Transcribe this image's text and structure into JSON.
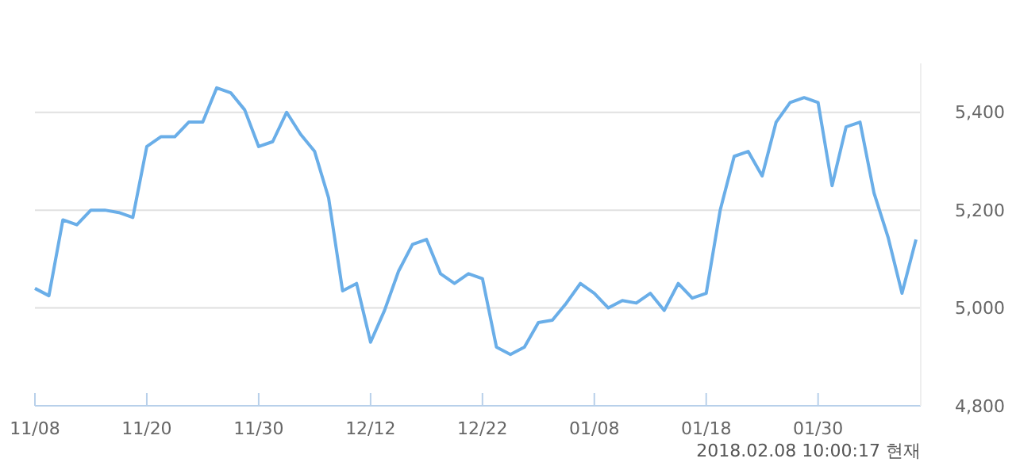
{
  "chart_data": {
    "type": "line",
    "categories": [
      "11/08",
      null,
      null,
      null,
      null,
      null,
      null,
      null,
      "11/20",
      null,
      null,
      null,
      null,
      null,
      null,
      null,
      "11/30",
      null,
      null,
      null,
      null,
      null,
      null,
      null,
      "12/12",
      null,
      null,
      null,
      null,
      null,
      null,
      null,
      "12/22",
      null,
      null,
      null,
      null,
      null,
      null,
      null,
      "01/08",
      null,
      null,
      null,
      null,
      null,
      null,
      null,
      "01/18",
      null,
      null,
      null,
      null,
      null,
      null,
      null,
      "01/30",
      null,
      null,
      null,
      null,
      null,
      null,
      null
    ],
    "series": [
      {
        "color": "#6aaee8",
        "values": [
          5040,
          5025,
          5180,
          5170,
          5200,
          5200,
          5195,
          5185,
          5330,
          5350,
          5350,
          5380,
          5380,
          5450,
          5440,
          5405,
          5330,
          5340,
          5400,
          5355,
          5320,
          5225,
          5035,
          5050,
          4930,
          4995,
          5075,
          5130,
          5140,
          5070,
          5050,
          5070,
          5060,
          4920,
          4905,
          4920,
          4970,
          4975,
          5010,
          5050,
          5030,
          5000,
          5015,
          5010,
          5030,
          4995,
          5050,
          5020,
          5030,
          5200,
          5310,
          5320,
          5270,
          5380,
          5420,
          5430,
          5420,
          5250,
          5370,
          5380,
          5235,
          5145,
          5030,
          5140
        ]
      }
    ],
    "ylim": [
      4800,
      5500
    ],
    "yticks": [
      {
        "value": 4800,
        "label": "4,800"
      },
      {
        "value": 5000,
        "label": "5,000"
      },
      {
        "value": 5200,
        "label": "5,200"
      },
      {
        "value": 5400,
        "label": "5,400"
      }
    ],
    "grid": "y",
    "marker": "none",
    "line_style": "solid",
    "annotations": [
      "2018.02.08 10:00:17 현재"
    ]
  }
}
